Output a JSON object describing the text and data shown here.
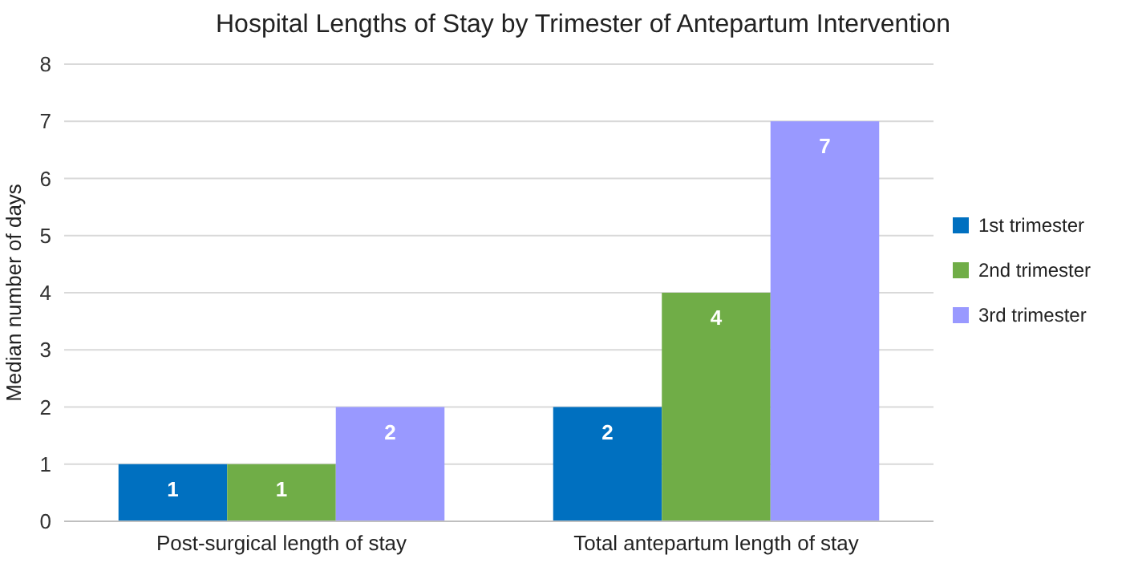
{
  "chart_data": {
    "type": "bar",
    "title": "Hospital Lengths of Stay by Trimester of Antepartum Intervention",
    "ylabel": "Median number of days",
    "categories": [
      "Post-surgical length of stay",
      "Total antepartum length of stay"
    ],
    "series": [
      {
        "name": "1st trimester",
        "color": "#0070c0",
        "values": [
          1,
          2
        ]
      },
      {
        "name": "2nd trimester",
        "color": "#70ad47",
        "values": [
          1,
          4
        ]
      },
      {
        "name": "3rd trimester",
        "color": "#9999ff",
        "values": [
          2,
          7
        ]
      }
    ],
    "ylim": [
      0,
      8
    ],
    "yticks": [
      0,
      1,
      2,
      3,
      4,
      5,
      6,
      7,
      8
    ],
    "grid": "y",
    "legend": "right",
    "data_labels": true
  }
}
